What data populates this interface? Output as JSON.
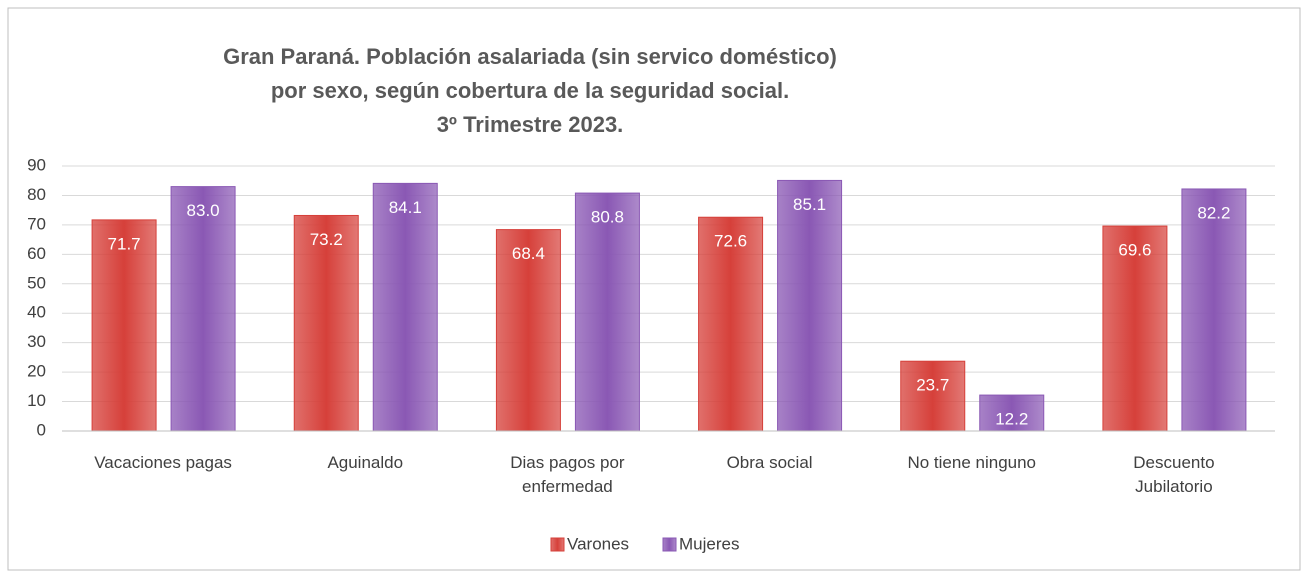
{
  "chart_data": {
    "type": "bar",
    "title": [
      "Gran Paraná. Población asalariada (sin servico doméstico)",
      "por sexo, según cobertura de la seguridad social.",
      "3º Trimestre 2023."
    ],
    "categories": [
      "Vacaciones pagas",
      "Aguinaldo",
      "Dias pagos por enfermedad",
      "Obra social",
      "No tiene ninguno",
      "Descuento Jubilatorio"
    ],
    "series": [
      {
        "name": "Varones",
        "color": "#d6403a",
        "values": [
          71.7,
          73.2,
          68.4,
          72.6,
          23.7,
          69.6
        ],
        "value_labels": [
          "71.7",
          "73.2",
          "68.4",
          "72.6",
          "23.7",
          "69.6"
        ]
      },
      {
        "name": "Mujeres",
        "color": "#8a58b4",
        "values": [
          83.0,
          84.1,
          80.8,
          85.1,
          12.2,
          82.2
        ],
        "value_labels": [
          "83.0",
          "84.1",
          "80.8",
          "85.1",
          "12.2",
          "82.2"
        ]
      }
    ],
    "ylim": [
      0,
      90
    ],
    "yticks": [
      0,
      10,
      20,
      30,
      40,
      50,
      60,
      70,
      80,
      90
    ],
    "grid": true,
    "legend": "bottom"
  }
}
